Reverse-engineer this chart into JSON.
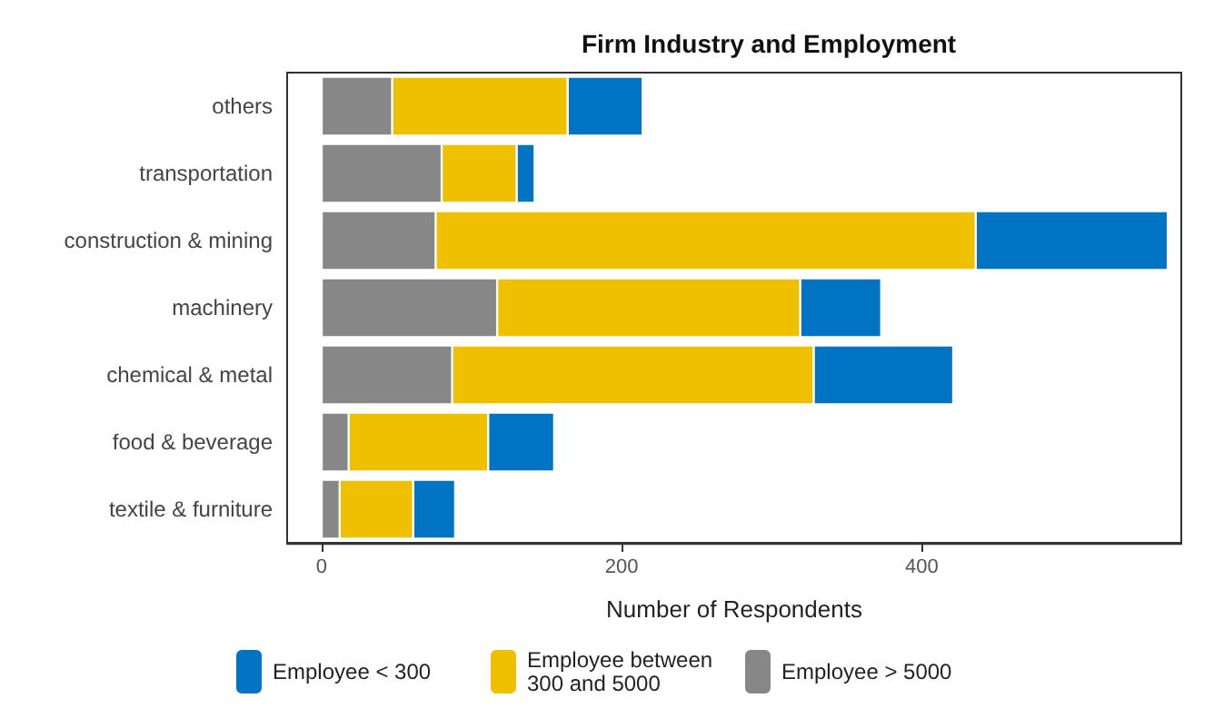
{
  "chart_data": {
    "type": "bar",
    "title": "Firm Industry and Employment",
    "xlabel": "Number of Respondents",
    "orientation": "horizontal",
    "stacked": true,
    "categories": [
      "others",
      "transportation",
      "construction & mining",
      "machinery",
      "chemical & metal",
      "food & beverage",
      "textile & furniture"
    ],
    "series": [
      {
        "name": "Employee > 5000",
        "color": "#878787",
        "values": [
          47,
          80,
          76,
          117,
          87,
          18,
          12
        ]
      },
      {
        "name": "Employee between 300 and 5000",
        "color": "#efc000",
        "values": [
          117,
          50,
          360,
          202,
          241,
          93,
          49
        ]
      },
      {
        "name": "Employee < 300",
        "color": "#0073c2",
        "values": [
          50,
          12,
          128,
          54,
          93,
          44,
          28
        ]
      }
    ],
    "xlim": [
      -23,
      573
    ],
    "xticks": [
      0,
      200,
      400
    ],
    "grid": false,
    "legend": "bottom"
  }
}
